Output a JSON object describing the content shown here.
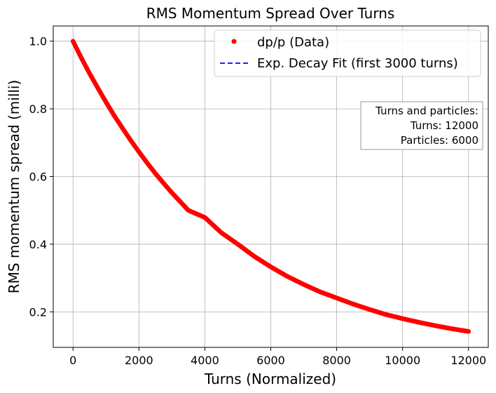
{
  "chart_data": {
    "type": "scatter",
    "title": "RMS Momentum Spread Over Turns",
    "xlabel": "Turns (Normalized)",
    "ylabel": "RMS momentum spread (milli)",
    "xlim": [
      -600,
      12600
    ],
    "ylim": [
      0.095,
      1.045
    ],
    "xticks": [
      0,
      2000,
      4000,
      6000,
      8000,
      10000,
      12000
    ],
    "yticks": [
      0.2,
      0.4,
      0.6,
      0.8,
      1.0
    ],
    "xtick_labels": [
      "0",
      "2000",
      "4000",
      "6000",
      "8000",
      "10000",
      "12000"
    ],
    "ytick_labels": [
      "0.2",
      "0.4",
      "0.6",
      "0.8",
      "1.0"
    ],
    "grid": true,
    "legend_position": "top-right",
    "series": [
      {
        "name": "dp/p (Data)",
        "style": "markers",
        "color": "#ff0000",
        "x": [
          0,
          250,
          500,
          750,
          1000,
          1250,
          1500,
          1750,
          2000,
          2250,
          2500,
          2750,
          3000,
          3500,
          4000,
          4500,
          5000,
          5500,
          6000,
          6500,
          7000,
          7500,
          8000,
          8500,
          9000,
          9500,
          10000,
          10500,
          11000,
          11500,
          12000
        ],
        "y": [
          1.0,
          0.951,
          0.905,
          0.862,
          0.82,
          0.78,
          0.743,
          0.707,
          0.673,
          0.64,
          0.609,
          0.58,
          0.552,
          0.5,
          0.479,
          0.434,
          0.4,
          0.364,
          0.333,
          0.305,
          0.281,
          0.259,
          0.241,
          0.223,
          0.207,
          0.192,
          0.18,
          0.169,
          0.159,
          0.15,
          0.142
        ]
      },
      {
        "name": "Exp. Decay Fit (first 3000 turns)",
        "style": "dashed",
        "color": "#0000ff",
        "x": [
          0,
          250,
          500,
          750,
          1000,
          1250,
          1500,
          1750,
          2000,
          2250,
          2500,
          2750,
          3000
        ],
        "y": [
          1.0,
          0.951,
          0.905,
          0.862,
          0.82,
          0.78,
          0.743,
          0.707,
          0.673,
          0.64,
          0.609,
          0.58,
          0.552
        ]
      }
    ],
    "annotation": {
      "lines": [
        "Turns and particles:",
        "Turns: 12000",
        "Particles: 6000"
      ],
      "position": "right"
    }
  }
}
